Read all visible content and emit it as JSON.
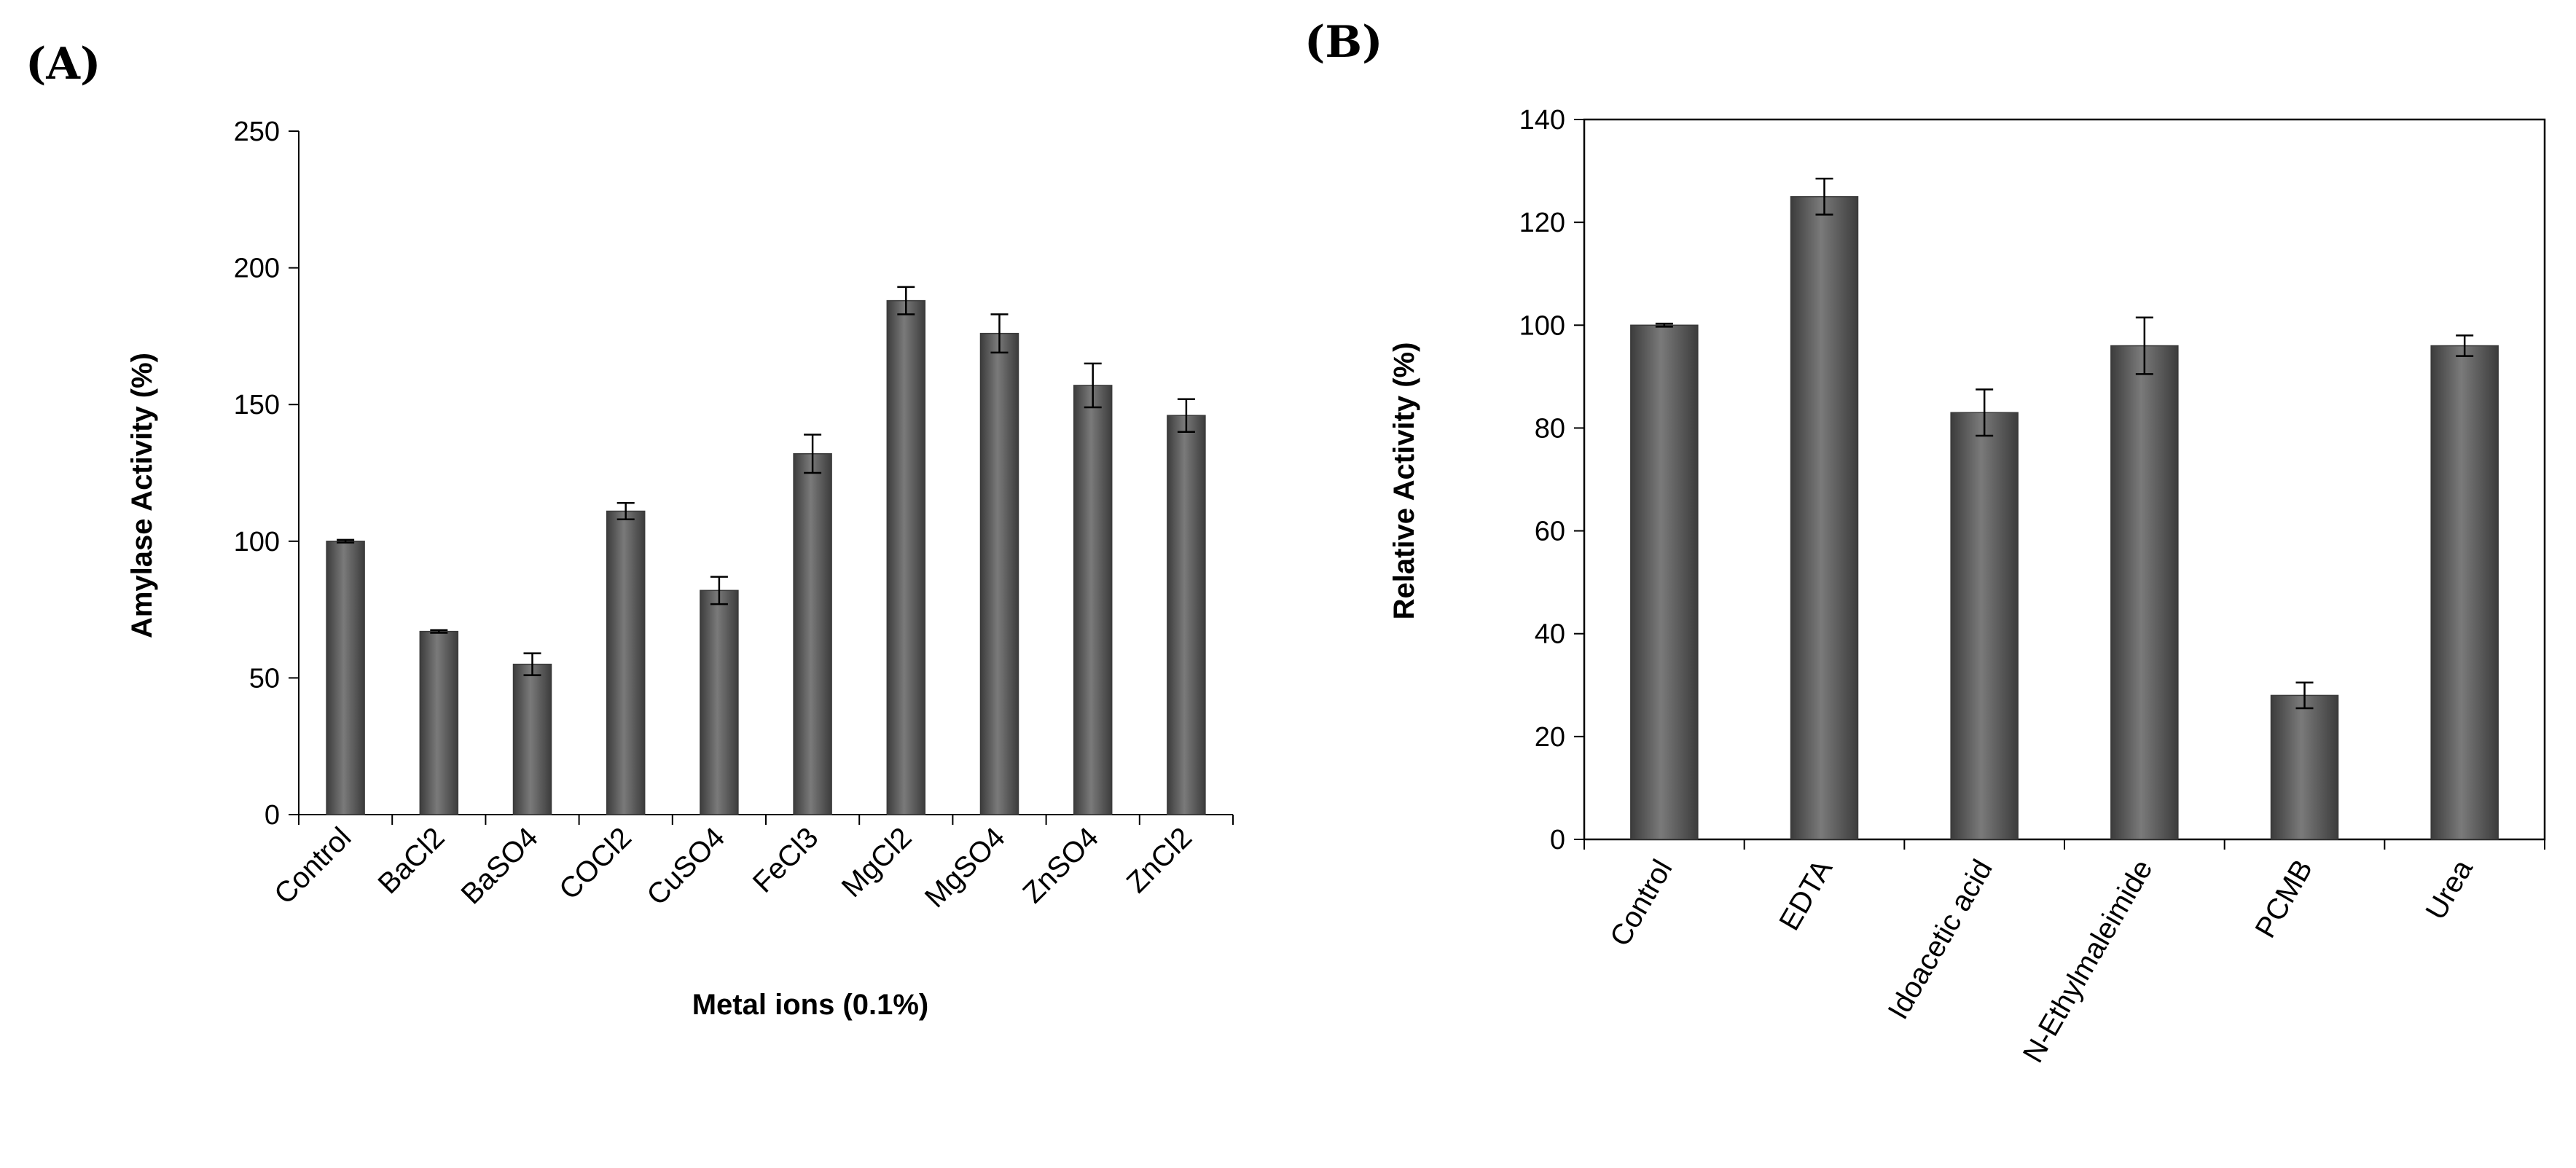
{
  "chart_data": [
    {
      "type": "bar",
      "panel_label": "(A)",
      "title": "",
      "xlabel": "Metal ions (0.1%)",
      "ylabel": "Amylase Activity (%)",
      "ylim": [
        0,
        250
      ],
      "yticks": [
        0,
        50,
        100,
        150,
        200,
        250
      ],
      "frame": false,
      "categories": [
        "Control",
        "BaCl2",
        "BaSO4",
        "COCl2",
        "CuSO4",
        "FeCl3",
        "MgCl2",
        "MgSO4",
        "ZnSO4",
        "ZnCl2"
      ],
      "values": [
        100,
        67,
        55,
        111,
        82,
        132,
        188,
        176,
        157,
        146
      ],
      "errors": [
        0.5,
        0.5,
        4,
        3,
        5,
        7,
        5,
        7,
        8,
        6
      ],
      "bar_color": "#555555"
    },
    {
      "type": "bar",
      "panel_label": "(B)",
      "title": "",
      "xlabel": "",
      "ylabel": "Relative Activity (%)",
      "ylim": [
        0,
        140
      ],
      "yticks": [
        0,
        20,
        40,
        60,
        80,
        100,
        120,
        140
      ],
      "frame": true,
      "categories": [
        "Control",
        "EDTA",
        "Idoacetic acid",
        "N-Ethylmaleimide",
        "PCMB",
        "Urea"
      ],
      "values": [
        100,
        125,
        83,
        96,
        28,
        96
      ],
      "errors": [
        0.3,
        3.5,
        4.5,
        5.5,
        2.5,
        2
      ],
      "bar_color": "#555555"
    }
  ]
}
